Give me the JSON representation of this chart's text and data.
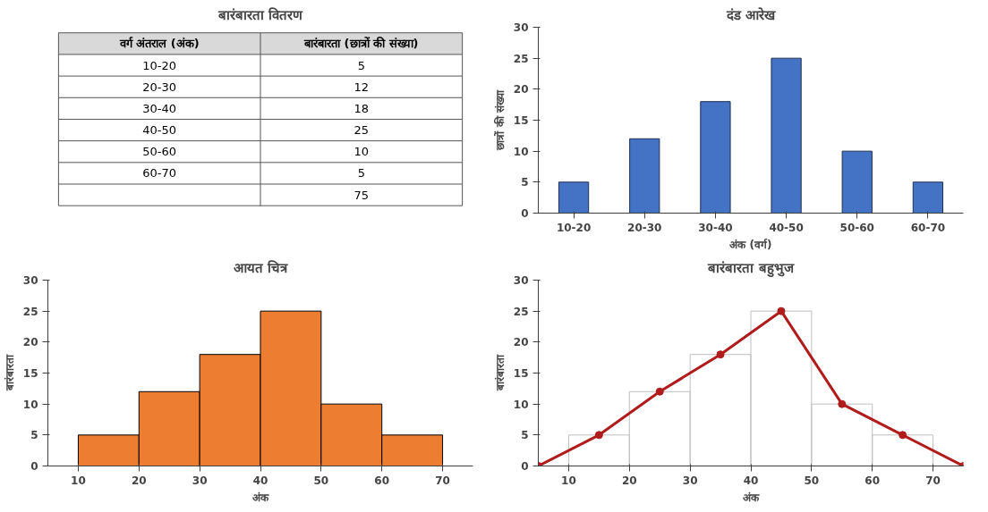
{
  "chart_data": [
    {
      "type": "other",
      "title": "बारंबारता वितरण",
      "annotations": [
        "वर्ग अंतराल (अंक)",
        "बारंबारता (छात्रों की संख्या)",
        "10-20",
        "5",
        "20-30",
        "12",
        "30-40",
        "18",
        "40-50",
        "25",
        "50-60",
        "10",
        "60-70",
        "5",
        "75"
      ]
    },
    {
      "type": "bar",
      "title": "दंड आरेख",
      "categories": [
        "10-20",
        "20-30",
        "30-40",
        "40-50",
        "50-60",
        "60-70"
      ],
      "values": [
        5,
        12,
        18,
        25,
        10,
        5
      ],
      "color": "#4472c4",
      "ylim": [
        0,
        30
      ],
      "yticks": [
        0,
        5,
        10,
        15,
        20,
        25,
        30
      ],
      "xlabel": "अंक (वर्ग)",
      "ylabel": "छात्रों की संख्या",
      "grid": false
    },
    {
      "type": "histogram",
      "title": "आयत चित्र",
      "bins": [
        10,
        20,
        30,
        40,
        50,
        60,
        70
      ],
      "values": [
        5,
        12,
        18,
        25,
        10,
        5
      ],
      "color": "#ed7d31",
      "xlim": [
        5,
        75
      ],
      "xticks": [
        10,
        20,
        30,
        40,
        50,
        60,
        70
      ],
      "ylim": [
        0,
        30
      ],
      "yticks": [
        0,
        5,
        10,
        15,
        20,
        25,
        30
      ],
      "xlabel": "अंक",
      "ylabel": "बारंबारता",
      "grid": false
    },
    {
      "type": "line",
      "title": "बारंबारता बहुभुज",
      "xlim": [
        5,
        75
      ],
      "xticks": [
        10,
        20,
        30,
        40,
        50,
        60,
        70
      ],
      "ylim": [
        0,
        30
      ],
      "yticks": [
        0,
        5,
        10,
        15,
        20,
        25,
        30
      ],
      "xlabel": "अंक",
      "ylabel": "बारंबारता",
      "grid": false,
      "marker": "circle",
      "series": [
        {
          "type": "histogram",
          "bins": [
            10,
            20,
            30,
            40,
            50,
            60,
            70
          ],
          "values": [
            5,
            12,
            18,
            25,
            10,
            5
          ],
          "color": "#bfbfbf"
        },
        {
          "type": "line",
          "x": [
            5,
            15,
            25,
            35,
            45,
            55,
            65,
            75
          ],
          "values": [
            0,
            5,
            12,
            18,
            25,
            10,
            5,
            0
          ],
          "color": "#b01c1c"
        }
      ]
    }
  ]
}
